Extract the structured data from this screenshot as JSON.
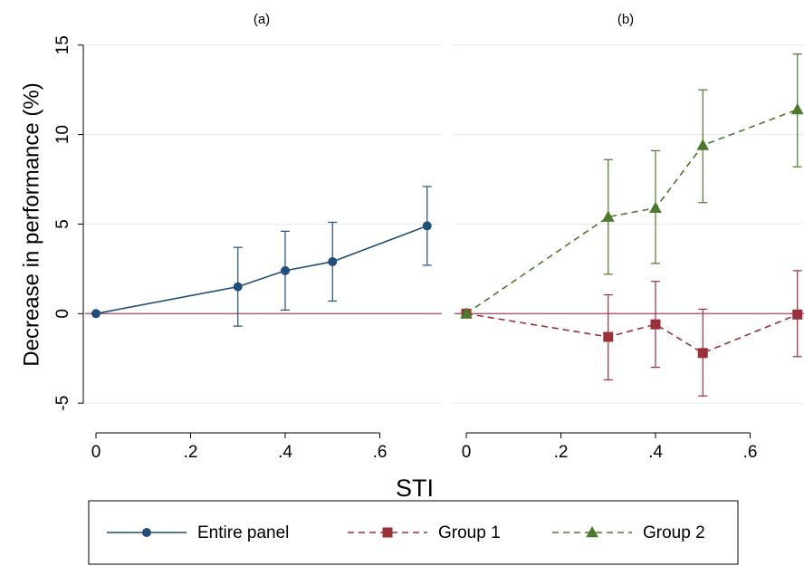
{
  "chart_data": {
    "type": "line",
    "ylabel": "Decrease in performance (%)",
    "xlabel": "STI",
    "ylim": [
      -5,
      15
    ],
    "xlim": [
      0,
      0.7
    ],
    "y_ticks": [
      -5,
      0,
      5,
      10,
      15
    ],
    "y_tick_labels": [
      "-5",
      "0",
      "5",
      "10",
      "15"
    ],
    "x_ticks": [
      0,
      0.2,
      0.4,
      0.6
    ],
    "x_tick_labels": [
      "0",
      ".2",
      ".4",
      ".6"
    ],
    "reference_line": {
      "y": 0,
      "color": "#c0516e"
    },
    "grid": true,
    "legend_position": "bottom",
    "panels": [
      {
        "title": "(a)",
        "series": [
          {
            "name": "Entire panel",
            "color": "#1f4e79",
            "marker": "circle",
            "line_style": "solid",
            "x": [
              0,
              0.3,
              0.4,
              0.5,
              0.7
            ],
            "y": [
              0,
              1.5,
              2.4,
              2.9,
              4.9
            ],
            "ci_low": [
              0,
              -0.7,
              0.2,
              0.7,
              2.7
            ],
            "ci_high": [
              0,
              3.7,
              4.6,
              5.1,
              7.1
            ]
          }
        ]
      },
      {
        "title": "(b)",
        "series": [
          {
            "name": "Group 1",
            "color": "#9b3039",
            "marker": "square",
            "line_style": "dashed",
            "x": [
              0,
              0.3,
              0.4,
              0.5,
              0.7
            ],
            "y": [
              0,
              -1.3,
              -0.6,
              -2.2,
              -0.05
            ],
            "ci_low": [
              0,
              -3.7,
              -3.0,
              -4.6,
              -2.4
            ],
            "ci_high": [
              0,
              1.05,
              1.8,
              0.25,
              2.4
            ]
          },
          {
            "name": "Group 2",
            "color": "#4a7a2a",
            "marker": "triangle",
            "line_style": "dashed",
            "x": [
              0,
              0.3,
              0.4,
              0.5,
              0.7
            ],
            "y": [
              0,
              5.4,
              5.9,
              9.4,
              11.4
            ],
            "ci_low": [
              0,
              2.2,
              2.8,
              6.2,
              8.2
            ],
            "ci_high": [
              0,
              8.6,
              9.1,
              12.5,
              14.5
            ]
          }
        ]
      }
    ],
    "legend": [
      "Entire panel",
      "Group 1",
      "Group 2"
    ]
  }
}
